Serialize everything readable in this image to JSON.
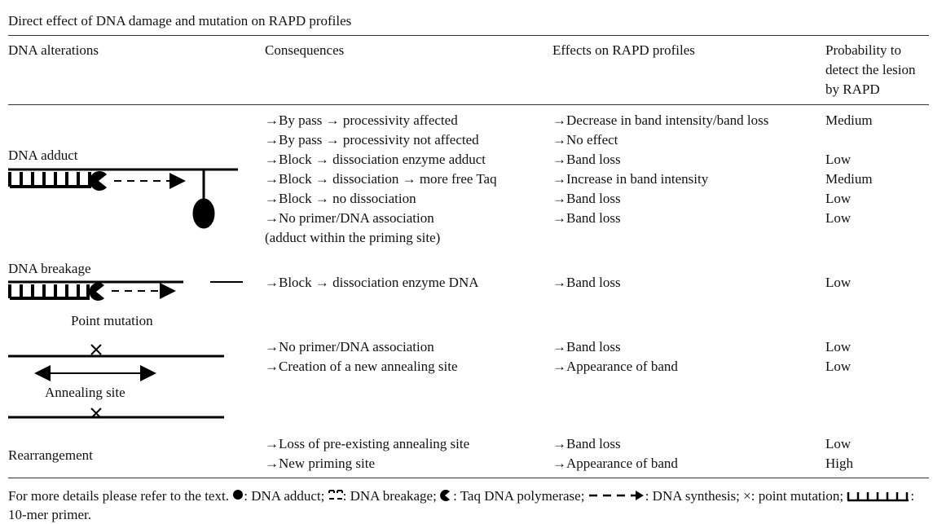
{
  "title": "Direct effect of DNA damage and mutation on RAPD profiles",
  "table": {
    "header": [
      "DNA alterations",
      "Consequences",
      "Effects on RAPD profiles",
      "Probability to detect the lesion by RAPD"
    ],
    "groups": [
      {
        "label": "DNA adduct",
        "rows": [
          {
            "consequence": "→By pass → processivity affected",
            "effect": "→Decrease in band intensity/band loss",
            "probability": "Medium"
          },
          {
            "consequence": "→By pass → processivity not affected",
            "effect": "→No effect"
          },
          {
            "consequence": "→Block → dissociation enzyme adduct",
            "effect": "→Band loss",
            "probability": "Low"
          },
          {
            "consequence": "→Block → dissociation → more free Taq",
            "effect": "→Increase in band intensity",
            "probability": "Medium"
          },
          {
            "consequence": "→Block → no dissociation",
            "effect": "→Band loss",
            "probability": "Low"
          },
          {
            "consequence": "→No primer/DNA association",
            "note": "(adduct within the priming site)",
            "effect": "→Band loss",
            "probability": "Low"
          }
        ]
      },
      {
        "label": "DNA breakage",
        "rows": [
          {
            "consequence": "→Block → dissociation enzyme DNA",
            "effect": "→Band loss",
            "probability": "Low"
          }
        ]
      },
      {
        "label": "Point mutation",
        "diagram_label": "Annealing site",
        "rows": [
          {
            "consequence": "→No primer/DNA association",
            "effect": "→Band loss",
            "probability": "Low"
          },
          {
            "consequence": "→Creation of a new annealing site",
            "effect": "→Appearance of band",
            "probability": "Low"
          }
        ]
      },
      {
        "label": "Rearrangement",
        "rows": [
          {
            "consequence": "→Loss of pre-existing annealing site",
            "effect": "→Band loss",
            "probability": "Low"
          },
          {
            "consequence": "→New priming site",
            "effect": "→Appearance of band",
            "probability": "High"
          }
        ]
      }
    ]
  },
  "footnote": [
    "For more details please refer to the text.",
    ": DNA adduct;",
    ": DNA breakage;",
    ": Taq DNA polymerase;",
    ": DNA synthesis;",
    "×: point mutation;",
    ": 10-mer primer."
  ]
}
